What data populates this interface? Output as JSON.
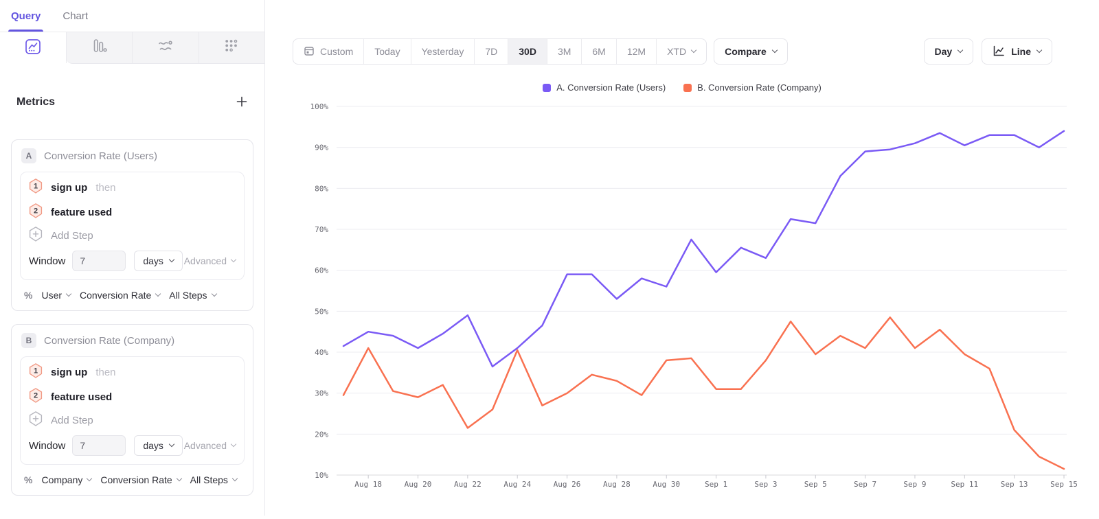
{
  "colors": {
    "accent_purple": "#6355e0",
    "series_a": "#7a5af5",
    "series_b": "#f97150"
  },
  "sidebar": {
    "tabs": [
      {
        "label": "Query",
        "active": true
      },
      {
        "label": "Chart",
        "active": false
      }
    ],
    "chart_type_tabs": [
      {
        "icon": "line-chart-icon",
        "active": true
      },
      {
        "icon": "bar-chart-icon",
        "active": false
      },
      {
        "icon": "flow-chart-icon",
        "active": false
      },
      {
        "icon": "dot-grid-icon",
        "active": false
      }
    ],
    "metrics": {
      "title": "Metrics"
    }
  },
  "metric_cards": [
    {
      "badge": "A",
      "title": "Conversion Rate (Users)",
      "steps": [
        {
          "num": "1",
          "label": "sign up",
          "suffix": "then"
        },
        {
          "num": "2",
          "label": "feature used",
          "suffix": ""
        }
      ],
      "add_step_label": "Add Step",
      "window": {
        "label": "Window",
        "value": "7",
        "unit": "days",
        "advanced_label": "Advanced"
      },
      "measure": {
        "symbol": "%",
        "entity": "User",
        "metric": "Conversion Rate",
        "scope": "All Steps"
      }
    },
    {
      "badge": "B",
      "title": "Conversion Rate (Company)",
      "steps": [
        {
          "num": "1",
          "label": "sign up",
          "suffix": "then"
        },
        {
          "num": "2",
          "label": "feature used",
          "suffix": ""
        }
      ],
      "add_step_label": "Add Step",
      "window": {
        "label": "Window",
        "value": "7",
        "unit": "days",
        "advanced_label": "Advanced"
      },
      "measure": {
        "symbol": "%",
        "entity": "Company",
        "metric": "Conversion Rate",
        "scope": "All Steps"
      }
    }
  ],
  "toolbar": {
    "date_ranges": [
      "Custom",
      "Today",
      "Yesterday",
      "7D",
      "30D",
      "3M",
      "6M",
      "12M",
      "XTD"
    ],
    "active_range": "30D",
    "compare_label": "Compare",
    "granularity_label": "Day",
    "chart_style_label": "Line"
  },
  "legend": {
    "items": [
      {
        "label": "A. Conversion Rate (Users)",
        "color": "#7a5af5"
      },
      {
        "label": "B. Conversion Rate (Company)",
        "color": "#f97150"
      }
    ]
  },
  "chart_data": {
    "type": "line",
    "x": [
      "Aug 17",
      "Aug 18",
      "Aug 19",
      "Aug 20",
      "Aug 21",
      "Aug 22",
      "Aug 23",
      "Aug 24",
      "Aug 25",
      "Aug 26",
      "Aug 27",
      "Aug 28",
      "Aug 29",
      "Aug 30",
      "Aug 31",
      "Sep 1",
      "Sep 2",
      "Sep 3",
      "Sep 4",
      "Sep 5",
      "Sep 6",
      "Sep 7",
      "Sep 8",
      "Sep 9",
      "Sep 10",
      "Sep 11",
      "Sep 12",
      "Sep 13",
      "Sep 14",
      "Sep 15"
    ],
    "x_tick_labels": [
      "Aug 18",
      "Aug 20",
      "Aug 22",
      "Aug 24",
      "Aug 26",
      "Aug 28",
      "Aug 30",
      "Sep 1",
      "Sep 3",
      "Sep 5",
      "Sep 7",
      "Sep 9",
      "Sep 11",
      "Sep 13",
      "Sep 15"
    ],
    "y_axis": {
      "tick_labels": [
        "100%",
        "90%",
        "80%",
        "70%",
        "60%",
        "50%",
        "40%",
        "30%",
        "20%",
        "10%"
      ],
      "min": 10,
      "max": 100,
      "unit": "%"
    },
    "series": [
      {
        "name": "A. Conversion Rate (Users)",
        "color": "#7a5af5",
        "values": [
          41.5,
          45,
          44,
          41,
          44.5,
          49,
          36.5,
          41,
          46.5,
          59,
          59,
          53,
          58,
          56,
          67.5,
          59.5,
          65.5,
          63,
          72.5,
          71.5,
          83,
          89,
          89.5,
          91,
          93.5,
          90.5,
          93,
          93,
          90,
          94
        ]
      },
      {
        "name": "B. Conversion Rate (Company)",
        "color": "#f97150",
        "values": [
          29.5,
          41,
          30.5,
          29,
          32,
          21.5,
          26,
          40.5,
          27,
          30,
          34.5,
          33,
          29.5,
          38,
          38.5,
          31,
          31,
          38,
          47.5,
          39.5,
          44,
          41,
          48.5,
          41,
          45.5,
          39.5,
          36,
          21,
          14.5,
          11.5
        ]
      }
    ],
    "grid": "horizontal",
    "legend_position": "top-center"
  }
}
